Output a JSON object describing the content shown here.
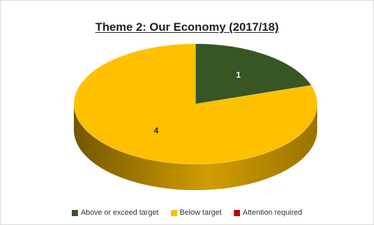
{
  "chart_data": {
    "type": "pie",
    "title": "Theme 2: Our Economy (2017/18)",
    "slices": [
      {
        "label": "Above or exceed target",
        "value": 1,
        "data_label": "1",
        "color": "#375623"
      },
      {
        "label": "Below target",
        "value": 4,
        "data_label": "4",
        "color": "#FFC000"
      },
      {
        "label": "Attention required",
        "value": 0,
        "data_label": "",
        "color": "#C00000"
      }
    ],
    "legend": {
      "position": "bottom"
    },
    "style": "3d"
  }
}
